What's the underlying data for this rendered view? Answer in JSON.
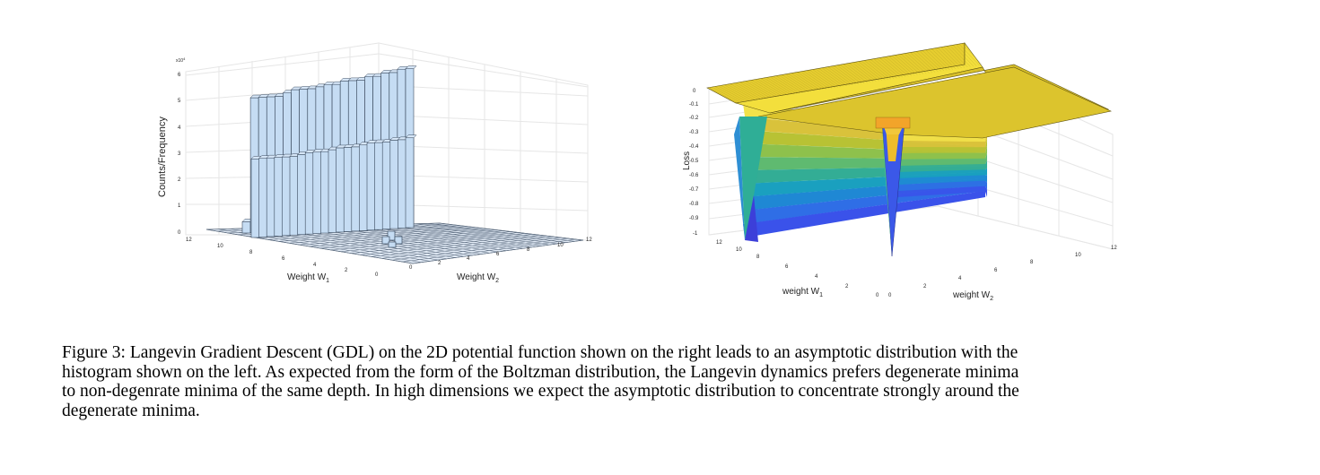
{
  "figure": {
    "caption_lines": [
      "Figure 3: Langevin Gradient Descent (GDL) on the 2D potential function shown on the right leads to an asymptotic distribution with the",
      "histogram shown on the left. As expected from the form of the Boltzman distribution, the Langevin dynamics prefers degenerate minima",
      "to non-degenrate minima of the same depth. In high dimensions we expect the asymptotic distribution to concentrate strongly around the",
      "degenerate minima."
    ]
  },
  "chart_data": [
    {
      "type": "bar3d",
      "title": "",
      "zlabel": "Counts/Frequency",
      "xlabel": "Weight W",
      "xlabel_sub": "1",
      "ylabel": "Weight W",
      "ylabel_sub": "2",
      "zscale_label": "x10",
      "zscale_exp": "4",
      "z_ticks": [
        "0",
        "1",
        "2",
        "3",
        "4",
        "5",
        "6"
      ],
      "w1_ticks": [
        "0",
        "2",
        "4",
        "6",
        "8",
        "10",
        "12"
      ],
      "w2_ticks": [
        "0",
        "2",
        "4",
        "6",
        "8",
        "10",
        "12"
      ],
      "zlim": [
        0,
        60000
      ],
      "ridges": [
        {
          "name": "",
          "w1": 10,
          "values": [
            4000,
            48000,
            48000,
            48000,
            48000,
            49000,
            50000,
            50000,
            50000,
            50500,
            51000,
            51000,
            52000,
            52000,
            52000,
            53000,
            53000,
            54000,
            54000,
            55000,
            55000
          ]
        },
        {
          "name": "",
          "w1": 8,
          "values": [
            28000,
            28000,
            28000,
            28000,
            28000,
            28000,
            28500,
            29000,
            29000,
            29000,
            29500,
            30000,
            30000,
            30000,
            30500,
            31000,
            31000,
            31000,
            31500,
            31500,
            32000
          ]
        }
      ],
      "peak": {
        "w1": 2,
        "w2": 6,
        "value": 2500
      },
      "colors": {
        "bar": "#c5dcf3",
        "edge": "#3a4a5e"
      }
    },
    {
      "type": "surface3d",
      "title": "",
      "zlabel": "Loss",
      "xlabel": "weight W",
      "xlabel_sub": "1",
      "ylabel": "weight W",
      "ylabel_sub": "2",
      "z_ticks": [
        "0",
        "-0.1",
        "-0.2",
        "-0.3",
        "-0.4",
        "-0.5",
        "-0.6",
        "-0.7",
        "-0.8",
        "-0.9",
        "-1"
      ],
      "w1_ticks": [
        "0",
        "2",
        "4",
        "6",
        "8",
        "10",
        "12"
      ],
      "w2_ticks": [
        "0",
        "2",
        "4",
        "6",
        "8",
        "10",
        "12"
      ],
      "zlim": [
        -1,
        0
      ],
      "surface_levels": [
        0,
        -0.1,
        -0.2,
        -0.3,
        -0.4,
        -0.5,
        -0.6,
        -0.7,
        -0.8,
        -0.9,
        -1
      ],
      "level_colors": [
        "#f2e24a",
        "#d9c23b",
        "#b8c234",
        "#8ec14c",
        "#5fba70",
        "#33ad95",
        "#1aa0bf",
        "#1f88d4",
        "#2f6ee6",
        "#3a52ea",
        "#3f3ad8"
      ],
      "minima": [
        {
          "kind": "degenerate valley",
          "depth": -1
        },
        {
          "kind": "non-degenerate point",
          "depth": -1
        }
      ],
      "colors": {
        "top": "#e2c92c",
        "edge": "#6b5d10"
      }
    }
  ]
}
